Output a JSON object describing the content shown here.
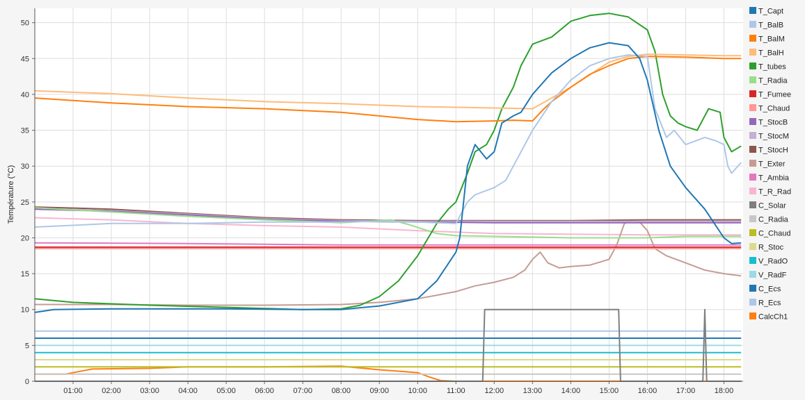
{
  "chart_data": {
    "type": "line",
    "title": "",
    "xlabel": "",
    "ylabel": "Température (°C)",
    "xlim": [
      0,
      18.5
    ],
    "ylim": [
      0,
      52
    ],
    "x_ticks": [
      "01:00",
      "02:00",
      "03:00",
      "04:00",
      "05:00",
      "06:00",
      "07:00",
      "08:00",
      "09:00",
      "10:00",
      "11:00",
      "12:00",
      "13:00",
      "14:00",
      "15:00",
      "16:00",
      "17:00",
      "18:00"
    ],
    "y_ticks": [
      0,
      5,
      10,
      15,
      20,
      25,
      30,
      35,
      40,
      45,
      50
    ],
    "grid": true,
    "legend_position": "right",
    "series": [
      {
        "name": "T_Capt",
        "color": "#1f77b4",
        "points": [
          [
            0,
            9.6
          ],
          [
            0.5,
            10
          ],
          [
            2,
            10.1
          ],
          [
            5,
            10.1
          ],
          [
            7,
            10
          ],
          [
            8,
            10
          ],
          [
            9,
            10.5
          ],
          [
            10,
            11.5
          ],
          [
            10.5,
            14
          ],
          [
            11,
            18
          ],
          [
            11.1,
            20
          ],
          [
            11.3,
            30
          ],
          [
            11.5,
            33
          ],
          [
            11.8,
            31
          ],
          [
            12,
            32
          ],
          [
            12.2,
            36
          ],
          [
            12.5,
            37
          ],
          [
            12.7,
            37.5
          ],
          [
            13,
            40
          ],
          [
            13.5,
            43
          ],
          [
            14,
            45
          ],
          [
            14.5,
            46.5
          ],
          [
            15,
            47.2
          ],
          [
            15.5,
            46.8
          ],
          [
            15.8,
            45
          ],
          [
            16,
            42
          ],
          [
            16.3,
            35
          ],
          [
            16.6,
            30
          ],
          [
            17,
            27
          ],
          [
            17.5,
            24
          ],
          [
            18,
            20
          ],
          [
            18.2,
            19.2
          ],
          [
            18.45,
            19.3
          ]
        ]
      },
      {
        "name": "T_BalB",
        "color": "#aec7e8",
        "points": [
          [
            0,
            21.5
          ],
          [
            2,
            22
          ],
          [
            4,
            22
          ],
          [
            6,
            22.2
          ],
          [
            8,
            22.2
          ],
          [
            9,
            22.3
          ],
          [
            10,
            22.2
          ],
          [
            11,
            22
          ],
          [
            11.3,
            25
          ],
          [
            11.5,
            26
          ],
          [
            12,
            27
          ],
          [
            12.3,
            28
          ],
          [
            12.5,
            30
          ],
          [
            13,
            35
          ],
          [
            13.5,
            39
          ],
          [
            14,
            42
          ],
          [
            14.5,
            44
          ],
          [
            15,
            45
          ],
          [
            15.5,
            45.5
          ],
          [
            16,
            45.3
          ],
          [
            16.2,
            38
          ],
          [
            16.5,
            34
          ],
          [
            16.7,
            35
          ],
          [
            17,
            33
          ],
          [
            17.5,
            34
          ],
          [
            17.8,
            33.5
          ],
          [
            18,
            33
          ],
          [
            18.1,
            30
          ],
          [
            18.2,
            29
          ],
          [
            18.45,
            30.5
          ]
        ]
      },
      {
        "name": "T_BalM",
        "color": "#ff7f0e",
        "points": [
          [
            0,
            39.5
          ],
          [
            2,
            38.8
          ],
          [
            4,
            38.3
          ],
          [
            6,
            38
          ],
          [
            8,
            37.5
          ],
          [
            10,
            36.5
          ],
          [
            11,
            36.2
          ],
          [
            12,
            36.3
          ],
          [
            12.5,
            36.4
          ],
          [
            13,
            36.3
          ],
          [
            13.3,
            38
          ],
          [
            13.5,
            39
          ],
          [
            14,
            41
          ],
          [
            14.5,
            42.8
          ],
          [
            15,
            44
          ],
          [
            15.5,
            45
          ],
          [
            16,
            45.3
          ],
          [
            17,
            45.2
          ],
          [
            18,
            45
          ],
          [
            18.45,
            45
          ]
        ]
      },
      {
        "name": "T_BalH",
        "color": "#ffbb78",
        "points": [
          [
            0,
            40.5
          ],
          [
            2,
            40.1
          ],
          [
            4,
            39.5
          ],
          [
            6,
            39
          ],
          [
            8,
            38.7
          ],
          [
            10,
            38.3
          ],
          [
            12,
            38.1
          ],
          [
            13,
            38
          ],
          [
            14,
            41
          ],
          [
            15,
            44.5
          ],
          [
            15.5,
            45.3
          ],
          [
            16,
            45.6
          ],
          [
            17,
            45.5
          ],
          [
            18,
            45.4
          ],
          [
            18.45,
            45.4
          ]
        ]
      },
      {
        "name": "T_tubes",
        "color": "#2ca02c",
        "points": [
          [
            0,
            11.5
          ],
          [
            1,
            11
          ],
          [
            3,
            10.6
          ],
          [
            5,
            10.3
          ],
          [
            7,
            10
          ],
          [
            8,
            10.1
          ],
          [
            8.5,
            10.6
          ],
          [
            9,
            11.8
          ],
          [
            9.5,
            14
          ],
          [
            10,
            17.5
          ],
          [
            10.5,
            22
          ],
          [
            10.8,
            24
          ],
          [
            11,
            25
          ],
          [
            11.3,
            29
          ],
          [
            11.5,
            32
          ],
          [
            11.8,
            33
          ],
          [
            12,
            35
          ],
          [
            12.2,
            38
          ],
          [
            12.5,
            41
          ],
          [
            12.7,
            44
          ],
          [
            13,
            47
          ],
          [
            13.5,
            48
          ],
          [
            14,
            50.2
          ],
          [
            14.5,
            51
          ],
          [
            15,
            51.3
          ],
          [
            15.5,
            50.8
          ],
          [
            16,
            49
          ],
          [
            16.2,
            46
          ],
          [
            16.4,
            40
          ],
          [
            16.6,
            37
          ],
          [
            16.8,
            36
          ],
          [
            17,
            35.5
          ],
          [
            17.3,
            35
          ],
          [
            17.6,
            38
          ],
          [
            17.9,
            37.5
          ],
          [
            18,
            34
          ],
          [
            18.2,
            32
          ],
          [
            18.45,
            32.8
          ]
        ]
      },
      {
        "name": "T_Radia",
        "color": "#98df8a",
        "points": [
          [
            0,
            24.2
          ],
          [
            2,
            23.6
          ],
          [
            4,
            23
          ],
          [
            6,
            22.5
          ],
          [
            8,
            22.1
          ],
          [
            9.3,
            22.5
          ],
          [
            9.8,
            21.8
          ],
          [
            10.5,
            20.6
          ],
          [
            11,
            20.3
          ],
          [
            12,
            20.2
          ],
          [
            13,
            20.1
          ],
          [
            14,
            20
          ],
          [
            15,
            20
          ],
          [
            16,
            20
          ],
          [
            17,
            20.2
          ],
          [
            18.45,
            20.2
          ]
        ]
      },
      {
        "name": "T_Fumee",
        "color": "#d62728",
        "points": [
          [
            0,
            18.7
          ],
          [
            18.45,
            18.7
          ]
        ]
      },
      {
        "name": "T_Chaud",
        "color": "#ff9896",
        "points": [
          [
            0,
            18.5
          ],
          [
            18.45,
            18.5
          ]
        ]
      },
      {
        "name": "T_StocB",
        "color": "#9467bd",
        "points": [
          [
            0,
            24
          ],
          [
            2,
            23.7
          ],
          [
            4,
            23.2
          ],
          [
            6,
            22.6
          ],
          [
            8,
            22.3
          ],
          [
            10,
            22.2
          ],
          [
            12,
            22.1
          ],
          [
            14,
            22.1
          ],
          [
            16,
            22.1
          ],
          [
            18.45,
            22.1
          ]
        ]
      },
      {
        "name": "T_StocM",
        "color": "#c5b0d5",
        "points": [
          [
            0,
            24.1
          ],
          [
            2,
            23.8
          ],
          [
            4,
            23.3
          ],
          [
            6,
            22.7
          ],
          [
            8,
            22.4
          ],
          [
            10,
            22.3
          ],
          [
            12,
            22.3
          ],
          [
            14,
            22.3
          ],
          [
            16,
            22.3
          ],
          [
            18.45,
            22.3
          ]
        ]
      },
      {
        "name": "T_StocH",
        "color": "#8c564b",
        "points": [
          [
            0,
            24.3
          ],
          [
            2,
            24
          ],
          [
            4,
            23.4
          ],
          [
            6,
            22.8
          ],
          [
            8,
            22.5
          ],
          [
            10,
            22.4
          ],
          [
            12,
            22.4
          ],
          [
            14,
            22.4
          ],
          [
            16,
            22.5
          ],
          [
            18.45,
            22.5
          ]
        ]
      },
      {
        "name": "T_Exter",
        "color": "#c49c94",
        "points": [
          [
            0,
            10.7
          ],
          [
            2,
            10.7
          ],
          [
            4,
            10.6
          ],
          [
            6,
            10.6
          ],
          [
            8,
            10.7
          ],
          [
            9,
            11
          ],
          [
            10,
            11.5
          ],
          [
            10.5,
            12
          ],
          [
            11,
            12.5
          ],
          [
            11.5,
            13.3
          ],
          [
            12,
            13.8
          ],
          [
            12.5,
            14.5
          ],
          [
            12.8,
            15.5
          ],
          [
            13,
            17
          ],
          [
            13.2,
            18
          ],
          [
            13.4,
            16.5
          ],
          [
            13.7,
            15.8
          ],
          [
            14,
            16
          ],
          [
            14.5,
            16.2
          ],
          [
            15,
            17
          ],
          [
            15.2,
            19
          ],
          [
            15.4,
            22
          ],
          [
            15.6,
            22.5
          ],
          [
            15.8,
            22.2
          ],
          [
            16,
            21
          ],
          [
            16.2,
            18.5
          ],
          [
            16.5,
            17.5
          ],
          [
            17,
            16.5
          ],
          [
            17.5,
            15.5
          ],
          [
            18,
            15
          ],
          [
            18.45,
            14.7
          ]
        ]
      },
      {
        "name": "T_Ambia",
        "color": "#e377c2",
        "points": [
          [
            0,
            19.3
          ],
          [
            4,
            19.2
          ],
          [
            8,
            19
          ],
          [
            12,
            19
          ],
          [
            16,
            19
          ],
          [
            18.45,
            19
          ]
        ]
      },
      {
        "name": "T_R_Rad",
        "color": "#f7b6d2",
        "points": [
          [
            0,
            22.8
          ],
          [
            2,
            22.5
          ],
          [
            4,
            22
          ],
          [
            6,
            21.7
          ],
          [
            8,
            21.5
          ],
          [
            10,
            21
          ],
          [
            11,
            20.8
          ],
          [
            12,
            20.6
          ],
          [
            14,
            20.5
          ],
          [
            16,
            20.4
          ],
          [
            18.45,
            20.4
          ]
        ]
      },
      {
        "name": "C_Solar",
        "color": "#7f7f7f",
        "points": [
          [
            0,
            0
          ],
          [
            11.7,
            0
          ],
          [
            11.75,
            10
          ],
          [
            15.25,
            10
          ],
          [
            15.3,
            0
          ],
          [
            17.45,
            0
          ],
          [
            17.5,
            10
          ],
          [
            17.55,
            0
          ],
          [
            18.45,
            0
          ]
        ]
      },
      {
        "name": "C_Radia",
        "color": "#c7c7c7",
        "points": [
          [
            0,
            1
          ],
          [
            18.45,
            1
          ]
        ]
      },
      {
        "name": "C_Chaud",
        "color": "#bcbd22",
        "points": [
          [
            0,
            2
          ],
          [
            18.45,
            2
          ]
        ]
      },
      {
        "name": "R_Stoc",
        "color": "#dbdb8d",
        "points": [
          [
            0,
            3
          ],
          [
            18.45,
            3
          ]
        ]
      },
      {
        "name": "V_RadO",
        "color": "#17becf",
        "points": [
          [
            0,
            4
          ],
          [
            18.45,
            4
          ]
        ]
      },
      {
        "name": "V_RadF",
        "color": "#9edae5",
        "points": [
          [
            0,
            5
          ],
          [
            18.45,
            5
          ]
        ]
      },
      {
        "name": "C_Ecs",
        "color": "#1f77b4",
        "points": [
          [
            0,
            6
          ],
          [
            18.45,
            6
          ]
        ]
      },
      {
        "name": "R_Ecs",
        "color": "#aec7e8",
        "points": [
          [
            0,
            7
          ],
          [
            18.45,
            7
          ]
        ]
      },
      {
        "name": "CalcCh1",
        "color": "#ff7f0e",
        "points": [
          [
            0,
            1
          ],
          [
            0.8,
            1
          ],
          [
            1.5,
            1.7
          ],
          [
            3,
            1.8
          ],
          [
            4,
            2
          ],
          [
            6,
            2
          ],
          [
            8,
            2.1
          ],
          [
            8.6,
            1.8
          ],
          [
            9,
            1.6
          ],
          [
            9.5,
            1.4
          ],
          [
            10,
            1.2
          ],
          [
            10.3,
            0.6
          ],
          [
            10.6,
            0.1
          ],
          [
            11,
            0
          ],
          [
            18.45,
            0
          ]
        ]
      }
    ]
  }
}
